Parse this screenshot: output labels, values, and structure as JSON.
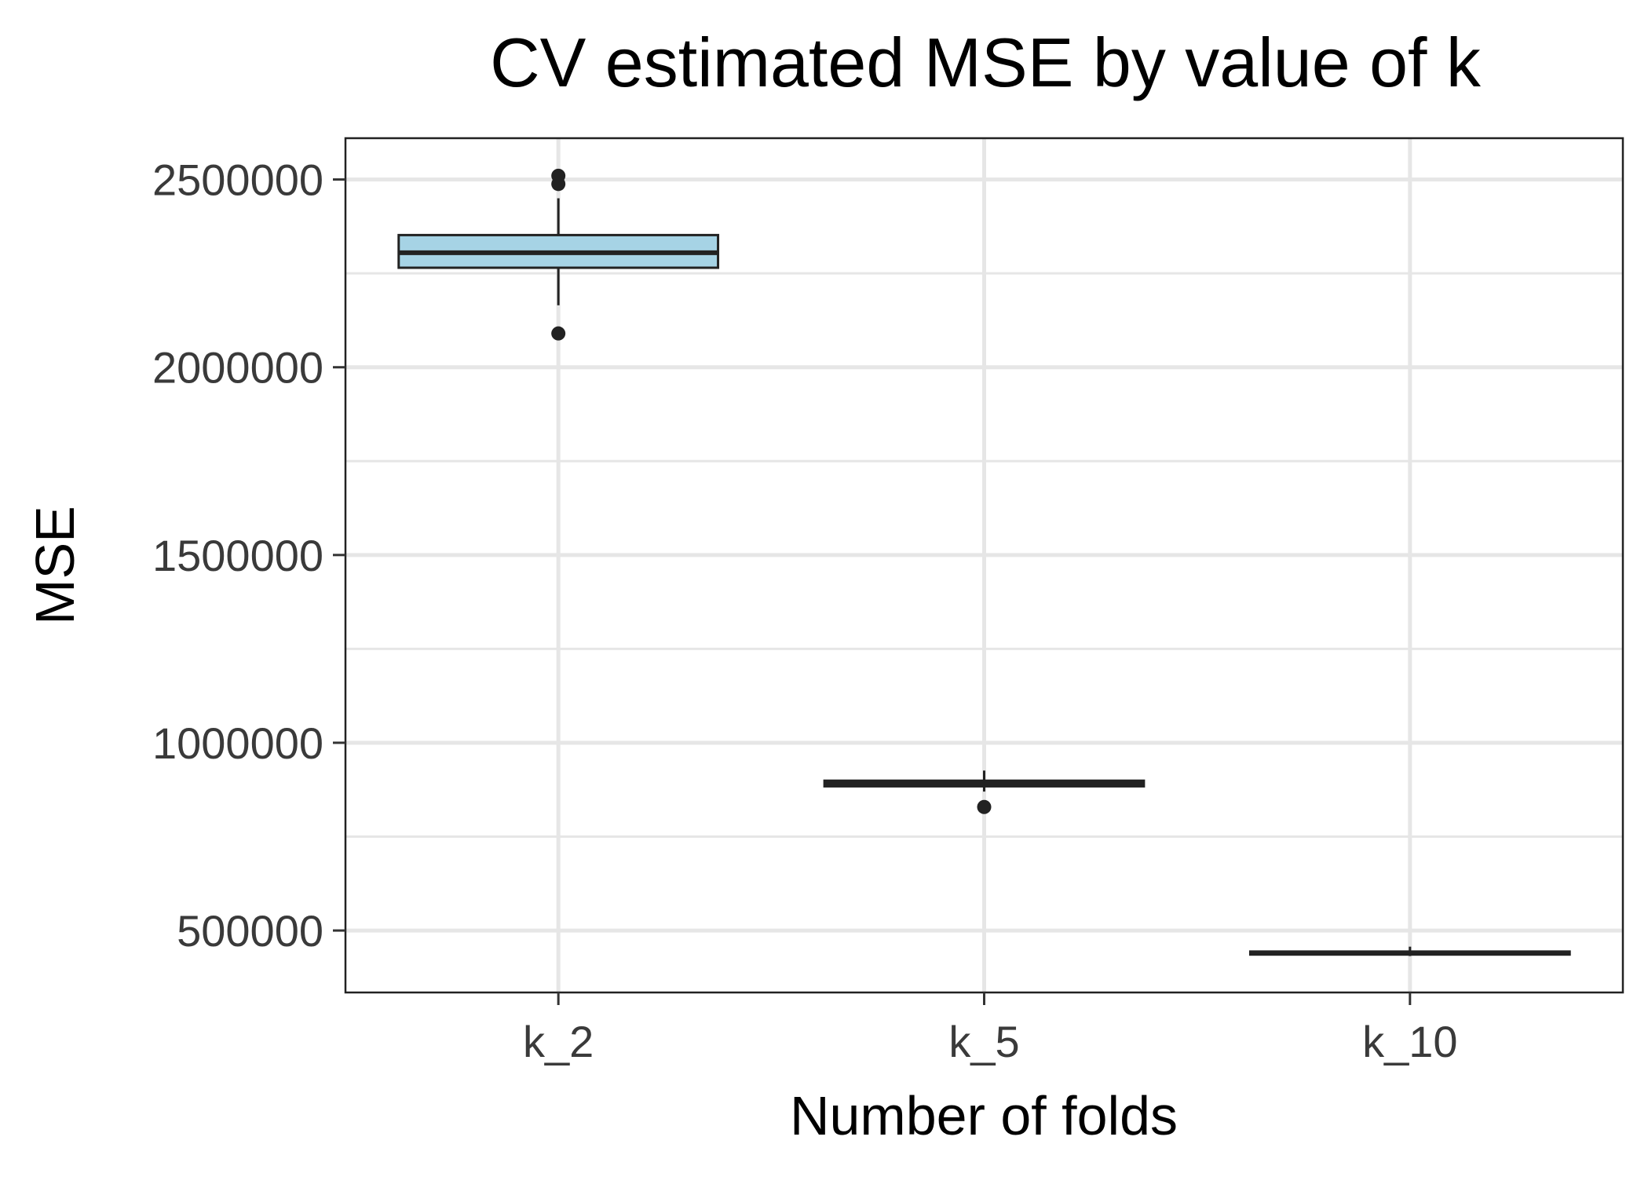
{
  "chart_data": {
    "type": "boxplot",
    "title": "CV estimated MSE by value of k",
    "xlabel": "Number of folds",
    "ylabel": "MSE",
    "categories": [
      "k_2",
      "k_5",
      "k_10"
    ],
    "ylim": [
      335000,
      2610000
    ],
    "yticks": [
      500000,
      1000000,
      1500000,
      2000000,
      2500000
    ],
    "ytick_labels": [
      "500000",
      "1000000",
      "1500000",
      "2000000",
      "2500000"
    ],
    "minor_yticks": [
      750000,
      1250000,
      1750000,
      2250000
    ],
    "grid": true,
    "box_fill": "#a6d3e5",
    "box_stroke": "#222222",
    "boxes": [
      {
        "category": "k_2",
        "q1": 2265000,
        "median": 2305000,
        "q3": 2352000,
        "whisker_low": 2165000,
        "whisker_high": 2450000,
        "outliers": [
          2090000,
          2488000,
          2510000
        ]
      },
      {
        "category": "k_5",
        "q1": 884000,
        "median": 891000,
        "q3": 899000,
        "whisker_low": 870000,
        "whisker_high": 926000,
        "outliers": [
          829000
        ]
      },
      {
        "category": "k_10",
        "q1": 436000,
        "median": 440000,
        "q3": 444000,
        "whisker_low": 432000,
        "whisker_high": 457000,
        "outliers": []
      }
    ]
  }
}
